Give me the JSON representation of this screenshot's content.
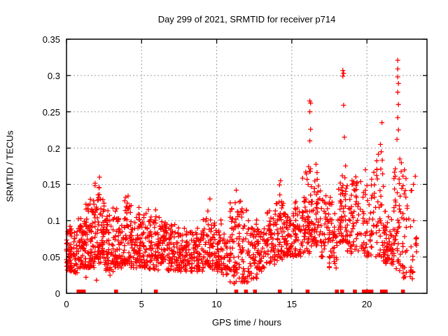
{
  "chart_data": {
    "type": "scatter",
    "title": "Day 299 of 2021, SRMTID for receiver p714",
    "xlabel": "GPS time / hours",
    "ylabel": "SRMTID / TECUs",
    "xlim": [
      0,
      24
    ],
    "ylim": [
      0,
      0.35
    ],
    "xticks": [
      0,
      5,
      10,
      15,
      20
    ],
    "xtick_labels": [
      "0",
      "5",
      "10",
      "15",
      "20"
    ],
    "yticks": [
      0,
      0.05,
      0.1,
      0.15,
      0.2,
      0.25,
      0.3,
      0.35
    ],
    "ytick_labels": [
      "0",
      "0.05",
      "0.1",
      "0.15",
      "0.2",
      "0.25",
      "0.3",
      "0.35"
    ],
    "grid": true,
    "legend": "none",
    "background": "#ffffff",
    "colors": {
      "points": "#ff0000",
      "grid": "#9e9e9e",
      "axis": "#000000",
      "text": "#000000"
    },
    "series": [
      {
        "name": "SRMTID",
        "marker": "plus",
        "color": "#ff0000",
        "density_bands": [
          [
            0.0,
            0.35,
            0.03,
            0.105,
            55
          ],
          [
            0.35,
            0.8,
            0.028,
            0.09,
            30
          ],
          [
            0.8,
            1.3,
            0.035,
            0.125,
            65
          ],
          [
            1.3,
            1.9,
            0.035,
            0.135,
            70
          ],
          [
            1.9,
            2.5,
            0.04,
            0.158,
            75
          ],
          [
            2.5,
            3.1,
            0.03,
            0.115,
            60
          ],
          [
            3.1,
            3.7,
            0.035,
            0.125,
            60
          ],
          [
            3.7,
            4.3,
            0.04,
            0.138,
            65
          ],
          [
            4.3,
            4.9,
            0.035,
            0.125,
            60
          ],
          [
            4.9,
            5.5,
            0.035,
            0.118,
            55
          ],
          [
            5.5,
            6.1,
            0.032,
            0.122,
            60
          ],
          [
            6.1,
            6.7,
            0.035,
            0.115,
            55
          ],
          [
            6.7,
            7.3,
            0.03,
            0.1,
            50
          ],
          [
            7.3,
            7.9,
            0.03,
            0.095,
            50
          ],
          [
            7.9,
            8.5,
            0.03,
            0.092,
            50
          ],
          [
            8.5,
            9.1,
            0.03,
            0.098,
            50
          ],
          [
            9.1,
            9.7,
            0.035,
            0.128,
            55
          ],
          [
            9.7,
            10.3,
            0.03,
            0.105,
            50
          ],
          [
            10.3,
            10.9,
            0.025,
            0.085,
            45
          ],
          [
            10.9,
            11.5,
            0.012,
            0.138,
            55
          ],
          [
            11.5,
            12.1,
            0.015,
            0.148,
            50
          ],
          [
            12.1,
            12.7,
            0.02,
            0.105,
            50
          ],
          [
            12.7,
            13.3,
            0.03,
            0.098,
            45
          ],
          [
            13.3,
            13.9,
            0.04,
            0.118,
            50
          ],
          [
            13.9,
            14.5,
            0.045,
            0.158,
            55
          ],
          [
            14.5,
            15.1,
            0.05,
            0.125,
            50
          ],
          [
            15.1,
            15.7,
            0.05,
            0.135,
            50
          ],
          [
            15.7,
            16.3,
            0.055,
            0.185,
            60
          ],
          [
            16.3,
            16.9,
            0.065,
            0.185,
            55
          ],
          [
            16.9,
            17.5,
            0.05,
            0.135,
            40
          ],
          [
            17.5,
            18.1,
            0.032,
            0.145,
            45
          ],
          [
            18.1,
            18.7,
            0.07,
            0.185,
            60
          ],
          [
            18.7,
            19.3,
            0.055,
            0.175,
            45
          ],
          [
            19.3,
            19.9,
            0.055,
            0.17,
            35
          ],
          [
            19.9,
            20.5,
            0.05,
            0.175,
            40
          ],
          [
            20.5,
            21.1,
            0.05,
            0.21,
            40
          ],
          [
            21.1,
            21.8,
            0.04,
            0.125,
            65
          ],
          [
            21.8,
            22.4,
            0.03,
            0.2,
            50
          ],
          [
            22.4,
            23.3,
            0.02,
            0.175,
            45
          ]
        ],
        "outlier_points": [
          [
            2.2,
            0.16
          ],
          [
            9.55,
            0.13
          ],
          [
            11.3,
            0.142
          ],
          [
            14.25,
            0.155
          ],
          [
            0.6,
            0.028
          ],
          [
            1.3,
            0.022
          ],
          [
            2.0,
            0.018
          ],
          [
            2.9,
            0.025
          ],
          [
            16.2,
            0.265
          ],
          [
            16.25,
            0.262
          ],
          [
            16.2,
            0.25
          ],
          [
            16.25,
            0.226
          ],
          [
            16.2,
            0.21
          ],
          [
            18.4,
            0.307
          ],
          [
            18.45,
            0.303
          ],
          [
            18.4,
            0.299
          ],
          [
            18.45,
            0.259
          ],
          [
            18.5,
            0.215
          ],
          [
            21.0,
            0.235
          ],
          [
            20.9,
            0.205
          ],
          [
            20.95,
            0.195
          ],
          [
            22.05,
            0.321
          ],
          [
            22.05,
            0.309
          ],
          [
            22.05,
            0.298
          ],
          [
            22.1,
            0.289
          ],
          [
            22.05,
            0.277
          ],
          [
            22.1,
            0.26
          ],
          [
            22.05,
            0.242
          ],
          [
            22.1,
            0.225
          ],
          [
            22.0,
            0.212
          ],
          [
            22.5,
            0.17
          ],
          [
            22.6,
            0.158
          ],
          [
            23.1,
            0.15
          ]
        ],
        "zero_value_hours": [
          0.8,
          1.0,
          1.15,
          3.3,
          5.95,
          11.3,
          11.95,
          12.55,
          14.2,
          16.05,
          18.0,
          18.35,
          19.2,
          19.8,
          20.05,
          20.3,
          21.0,
          21.25,
          22.4
        ]
      }
    ]
  }
}
